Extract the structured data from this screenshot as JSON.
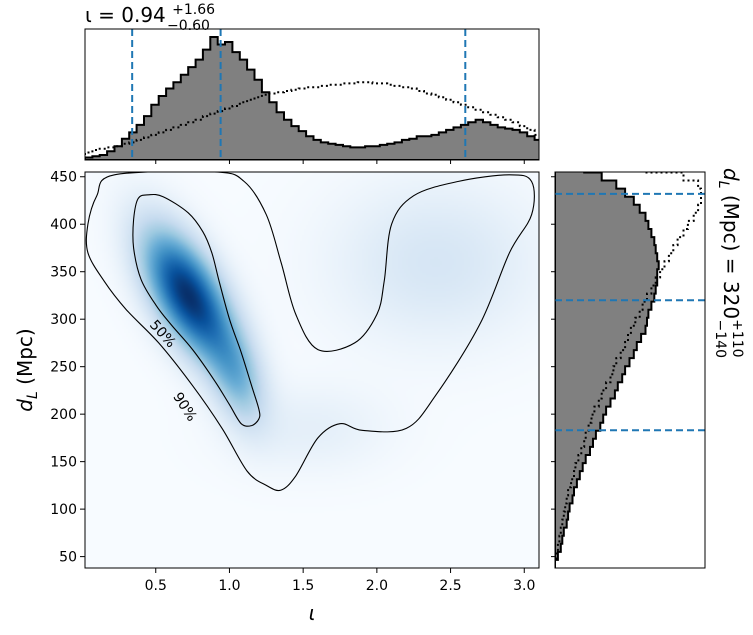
{
  "top_title": {
    "prefix": "ι = 0.94",
    "sup": "+1.66",
    "sub": "−0.60"
  },
  "right_title": {
    "prefix": "d",
    "prefix_sub": "L",
    "mid": " (Mpc) = 320",
    "sup": "+110",
    "sub": "−140"
  },
  "chart_data": [
    {
      "name": "joint",
      "type": "heatmap",
      "xlabel": "ι",
      "ylabel": "d",
      "ylabel_sub": "L",
      "ylabel_unit": " (Mpc)",
      "xlim": [
        0.02,
        3.1
      ],
      "ylim": [
        38,
        455
      ],
      "xticks": [
        0.5,
        1.0,
        1.5,
        2.0,
        2.5,
        3.0
      ],
      "xtick_labels": [
        "0.5",
        "1.0",
        "1.5",
        "2.0",
        "2.5",
        "3.0"
      ],
      "yticks": [
        50,
        100,
        150,
        200,
        250,
        300,
        350,
        400,
        450
      ],
      "ytick_labels": [
        "50",
        "100",
        "150",
        "200",
        "250",
        "300",
        "350",
        "400",
        "450"
      ],
      "colormap": "Blues",
      "density_components": [
        {
          "x": 0.72,
          "y": 325,
          "sx": 0.2,
          "sy": 45,
          "rho": -0.6,
          "w": 1.0
        },
        {
          "x": 1.05,
          "y": 240,
          "sx": 0.13,
          "sy": 35,
          "rho": -0.4,
          "w": 0.35
        },
        {
          "x": 2.4,
          "y": 360,
          "sx": 0.45,
          "sy": 55,
          "rho": 0.0,
          "w": 0.12
        },
        {
          "x": 1.55,
          "y": 185,
          "sx": 0.35,
          "sy": 30,
          "rho": 0.0,
          "w": 0.06
        }
      ],
      "contours": [
        {
          "label": "50%",
          "points": [
            [
              0.38,
              427
            ],
            [
              0.45,
              431
            ],
            [
              0.55,
              429
            ],
            [
              0.72,
              412
            ],
            [
              0.82,
              392
            ],
            [
              0.88,
              370
            ],
            [
              0.93,
              340
            ],
            [
              1.0,
              300
            ],
            [
              1.08,
              265
            ],
            [
              1.15,
              230
            ],
            [
              1.2,
              205
            ],
            [
              1.2,
              195
            ],
            [
              1.15,
              188
            ],
            [
              1.08,
              190
            ],
            [
              1.0,
              210
            ],
            [
              0.9,
              235
            ],
            [
              0.75,
              268
            ],
            [
              0.6,
              295
            ],
            [
              0.5,
              315
            ],
            [
              0.4,
              342
            ],
            [
              0.35,
              375
            ],
            [
              0.35,
              405
            ]
          ]
        },
        {
          "label": "90%",
          "points": [
            [
              0.04,
              400
            ],
            [
              0.1,
              430
            ],
            [
              0.22,
              452
            ],
            [
              0.9,
              455
            ],
            [
              1.1,
              445
            ],
            [
              1.25,
              410
            ],
            [
              1.35,
              360
            ],
            [
              1.45,
              305
            ],
            [
              1.6,
              268
            ],
            [
              1.85,
              275
            ],
            [
              2.0,
              305
            ],
            [
              2.05,
              340
            ],
            [
              2.1,
              400
            ],
            [
              2.25,
              430
            ],
            [
              2.55,
              445
            ],
            [
              2.9,
              452
            ],
            [
              3.05,
              445
            ],
            [
              3.05,
              410
            ],
            [
              2.9,
              370
            ],
            [
              2.7,
              295
            ],
            [
              2.4,
              220
            ],
            [
              2.2,
              185
            ],
            [
              1.9,
              183
            ],
            [
              1.75,
              190
            ],
            [
              1.6,
              175
            ],
            [
              1.45,
              135
            ],
            [
              1.35,
              120
            ],
            [
              1.25,
              125
            ],
            [
              1.12,
              140
            ],
            [
              0.95,
              185
            ],
            [
              0.75,
              230
            ],
            [
              0.52,
              275
            ],
            [
              0.3,
              310
            ],
            [
              0.15,
              340
            ],
            [
              0.04,
              370
            ]
          ]
        }
      ]
    },
    {
      "name": "iota_marginal",
      "type": "histogram",
      "xlim": [
        0.02,
        3.1
      ],
      "bin_start": 0.02,
      "bin_width": 0.05,
      "counts": [
        2,
        3,
        4,
        7,
        11,
        17,
        22,
        28,
        35,
        44,
        51,
        57,
        62,
        68,
        74,
        80,
        88,
        98,
        92,
        94,
        86,
        80,
        72,
        64,
        54,
        46,
        38,
        32,
        27,
        23,
        19,
        16,
        14,
        13,
        12,
        11,
        10,
        10,
        11,
        11,
        12,
        13,
        14,
        16,
        17,
        19,
        19,
        20,
        22,
        24,
        26,
        28,
        30,
        32,
        30,
        28,
        26,
        25,
        24,
        22,
        19,
        16,
        12,
        8,
        5,
        2
      ],
      "prior_counts": [
        6,
        8,
        9,
        10,
        11,
        13,
        14,
        16,
        18,
        20,
        22,
        24,
        26,
        28,
        30,
        32,
        35,
        37,
        39,
        41,
        43,
        46,
        48,
        50,
        52,
        53,
        54,
        55,
        56,
        57,
        58,
        58,
        59,
        60,
        60,
        61,
        61,
        62,
        62,
        61,
        61,
        60,
        59,
        58,
        57,
        55,
        53,
        52,
        50,
        48,
        46,
        44,
        42,
        40,
        38,
        36,
        34,
        32,
        30,
        27,
        24,
        20,
        16,
        12,
        8,
        4
      ],
      "quantiles": [
        0.34,
        0.94,
        2.6
      ]
    },
    {
      "name": "dL_marginal",
      "type": "histogram",
      "orientation": "horizontal",
      "ylim": [
        38,
        455
      ],
      "bin_start": 38,
      "bin_width": 8.5,
      "counts": [
        0,
        2,
        4,
        5,
        6,
        8,
        9,
        10,
        12,
        13,
        15,
        17,
        19,
        21,
        24,
        26,
        28,
        31,
        33,
        35,
        38,
        41,
        43,
        46,
        48,
        51,
        54,
        56,
        59,
        62,
        63,
        64,
        66,
        68,
        69,
        70,
        70,
        71,
        70,
        69,
        68,
        66,
        64,
        62,
        58,
        54,
        48,
        42,
        32,
        20
      ],
      "prior_counts": [
        0,
        1,
        2,
        3,
        4,
        5,
        6,
        7,
        8,
        9,
        11,
        13,
        14,
        16,
        18,
        20,
        21,
        23,
        25,
        27,
        30,
        32,
        35,
        38,
        40,
        42,
        45,
        48,
        50,
        52,
        55,
        58,
        60,
        63,
        66,
        69,
        72,
        75,
        78,
        81,
        84,
        88,
        91,
        95,
        98,
        100,
        100,
        98,
        88,
        60
      ],
      "quantiles": [
        183,
        320,
        432
      ]
    }
  ],
  "colors": {
    "histogram_fill": "#808080",
    "histogram_edge": "#000000",
    "quantile_line": "#1f77b4",
    "contour": "#000000"
  }
}
